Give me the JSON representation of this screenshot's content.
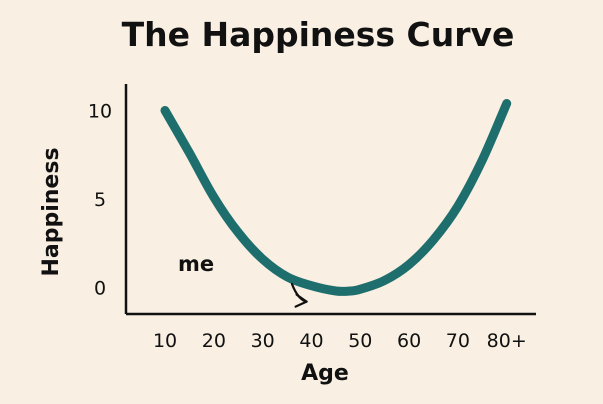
{
  "chart_data": {
    "type": "line",
    "title": "The Happiness Curve",
    "xlabel": "Age",
    "ylabel": "Happiness",
    "x_tick_labels": [
      "10",
      "20",
      "30",
      "40",
      "50",
      "60",
      "70",
      "80+"
    ],
    "x_tick_values": [
      10,
      20,
      30,
      40,
      50,
      60,
      70,
      80
    ],
    "y_tick_labels": [
      "10",
      "5",
      "0"
    ],
    "y_tick_values": [
      10,
      5,
      0
    ],
    "xlim": [
      2,
      86
    ],
    "ylim": [
      -1.5,
      11.5
    ],
    "grid": false,
    "series": [
      {
        "color": "#1f6e6e",
        "x": [
          10,
          15,
          20,
          25,
          30,
          35,
          40,
          45,
          48,
          50,
          55,
          60,
          65,
          70,
          75,
          80
        ],
        "y": [
          10.0,
          7.6,
          5.1,
          3.1,
          1.6,
          0.6,
          0.1,
          -0.2,
          -0.2,
          -0.1,
          0.4,
          1.3,
          2.7,
          4.6,
          7.2,
          10.4
        ]
      }
    ],
    "annotations": [
      {
        "text": "me",
        "arrow_from": {
          "x": 36,
          "y": 0.2
        },
        "arrow_to": {
          "x": 39,
          "y": -0.8
        }
      }
    ]
  }
}
